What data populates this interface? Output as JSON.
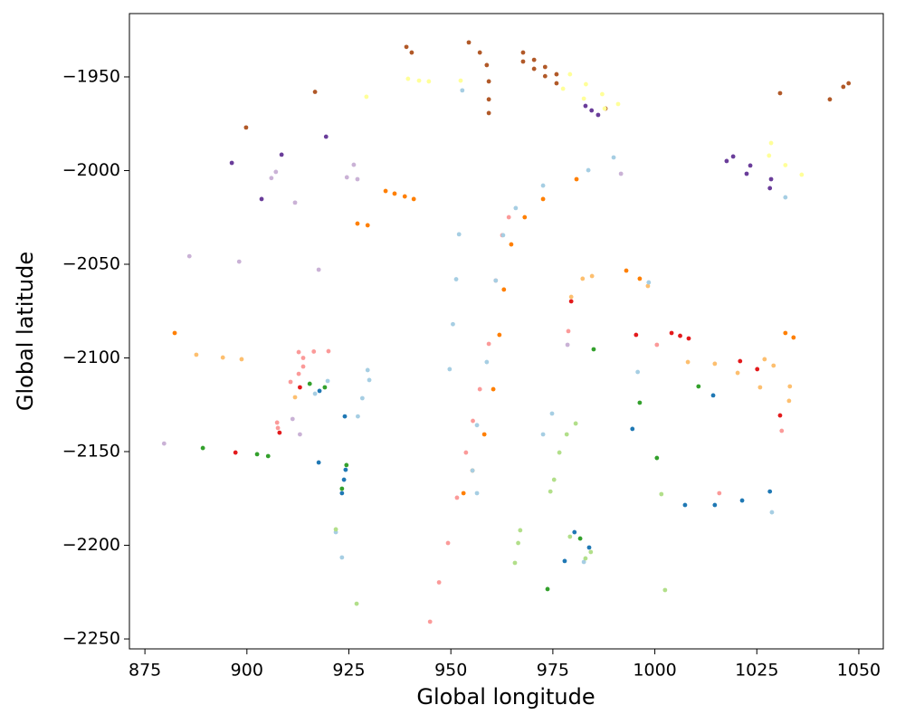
{
  "chart_data": {
    "type": "scatter",
    "x_label": "Global longitude",
    "y_label": "Global latitude",
    "xlim": [
      871.2,
      1056
    ],
    "ylim": [
      -2255.3,
      -1916.2
    ],
    "xticks": [
      875,
      900,
      925,
      950,
      975,
      1000,
      1025,
      1050
    ],
    "yticks": [
      {
        "value": -1950,
        "label": "−1950"
      },
      {
        "value": -2000,
        "label": "−2000"
      },
      {
        "value": -2050,
        "label": "−2050"
      },
      {
        "value": -2100,
        "label": "−2100"
      },
      {
        "value": -2150,
        "label": "−2150"
      },
      {
        "value": -2200,
        "label": "−2200"
      },
      {
        "value": -2250,
        "label": "−2250"
      }
    ],
    "series": [
      {
        "color": "#b15928",
        "x": [
          939.1,
          940.4,
          916.7,
          899.8,
          954.4,
          957.1,
          958.8,
          959.3,
          959.3,
          959.3,
          967.7,
          970.4,
          973.1,
          975.9,
          967.7,
          970.4,
          973.1,
          975.9,
          987.9,
          1030.7,
          1042.9,
          1046.2,
          1047.5
        ],
        "values": [
          -1934,
          -1937,
          -1958,
          -1977,
          -1931.6,
          -1937,
          -1943.7,
          -1952.4,
          -1962,
          -1969.3,
          -1937,
          -1940.9,
          -1944.7,
          -1948.6,
          -1941.8,
          -1945.7,
          -1949.6,
          -1953.4,
          -1966.9,
          -1958.7,
          -1962,
          -1955.3,
          -1953.4
        ]
      },
      {
        "color": "#ffff99",
        "x": [
          929.3,
          939.5,
          942.2,
          944.6,
          952.4,
          979.2,
          983.1,
          987.1,
          991,
          977.5,
          982.6,
          987.7,
          1028.5,
          1028,
          1032,
          1036
        ],
        "values": [
          -1960.6,
          -1951,
          -1952,
          -1952.4,
          -1952,
          -1948.6,
          -1953.9,
          -1959.2,
          -1964.5,
          -1956.3,
          -1961.6,
          -1966.9,
          -1985.3,
          -1992,
          -1997.1,
          -2002.2
        ]
      },
      {
        "color": "#6a3d9a",
        "x": [
          896.3,
          908.5,
          919.4,
          903.6,
          983,
          984.5,
          986.1,
          1019.2,
          1017.6,
          1023.4,
          1022.5,
          1028.5,
          1028.2
        ],
        "values": [
          -1995.9,
          -1991.5,
          -1981.9,
          -2015.2,
          -1965.5,
          -1967.9,
          -1970.3,
          -1992.5,
          -1994.9,
          -1997.3,
          -2001.7,
          -2004.6,
          -2009.4
        ]
      },
      {
        "color": "#cab2d6",
        "x": [
          907.1,
          906,
          926.2,
          924.5,
          927.1,
          911.8,
          885.9,
          898.1,
          917.6,
          991.7,
          879.7,
          911.2,
          913,
          978.6
        ],
        "values": [
          -2000.7,
          -2004,
          -1996.9,
          -2003.6,
          -2004.6,
          -2017.1,
          -2045.7,
          -2048.6,
          -2052.9,
          -2001.7,
          -2145.7,
          -2132.6,
          -2140.8,
          -2093
        ]
      },
      {
        "color": "#ff7f00",
        "x": [
          934,
          936.2,
          938.7,
          940.9,
          927.1,
          929.6,
          882.3,
          1032,
          1034,
          993,
          996.3,
          953.1,
          955.3,
          958.2,
          960.4,
          961.9,
          963,
          964.8,
          968.1,
          972.6,
          980.8
        ],
        "values": [
          -2010.9,
          -2012.3,
          -2013.8,
          -2015.2,
          -2028.3,
          -2029.2,
          -2086.7,
          -2086.7,
          -2089.1,
          -2053.4,
          -2057.7,
          -2172.2,
          -2160.1,
          -2140.8,
          -2116.7,
          -2087.7,
          -2063.5,
          -2039.4,
          -2024.9,
          -2015.2,
          -2004.6
        ]
      },
      {
        "color": "#fdbf6f",
        "x": [
          887.6,
          894.1,
          898.7,
          911.8,
          979.5,
          982.3,
          984.6,
          998.3,
          1026.9,
          1029.1,
          1033.1,
          1008.1,
          1014.7,
          1020.3,
          1025.8,
          1032.9
        ],
        "values": [
          -2098.3,
          -2099.8,
          -2100.7,
          -2121,
          -2067.4,
          -2057.7,
          -2056.3,
          -2061.6,
          -2100.7,
          -2104.1,
          -2115.2,
          -2102.2,
          -2103.1,
          -2108,
          -2115.7,
          -2122.9
        ]
      },
      {
        "color": "#e31a1c",
        "x": [
          979.5,
          995.4,
          1004.1,
          1006.2,
          1008.3,
          1020.9,
          1025.1,
          1030.7,
          913,
          908,
          897.2
        ],
        "values": [
          -2069.8,
          -2087.7,
          -2086.7,
          -2088.2,
          -2089.6,
          -2101.7,
          -2106,
          -2130.7,
          -2115.7,
          -2139.9,
          -2150.5
        ]
      },
      {
        "color": "#fb9a99",
        "x": [
          978.8,
          1000.5,
          907.4,
          907.6,
          1015.8,
          1031.1,
          910.7,
          912.7,
          913.8,
          913.8,
          912.7,
          916.4,
          920,
          944.9,
          947.1,
          949.3,
          951.5,
          953.7,
          955.4,
          957.1,
          959.3,
          961,
          962.6,
          964.2
        ],
        "values": [
          -2085.7,
          -2093,
          -2134.5,
          -2137.4,
          -2172.2,
          -2138.9,
          -2112.8,
          -2108.5,
          -2104.6,
          -2100,
          -2096.9,
          -2096.6,
          -2096.4,
          -2240.8,
          -2219.8,
          -2198.8,
          -2174.6,
          -2150.5,
          -2133.6,
          -2116.7,
          -2092.5,
          -2058.7,
          -2034.5,
          -2024.9
        ]
      },
      {
        "color": "#a6cee3",
        "x": [
          952.8,
          1032,
          916.7,
          919.8,
          998.5,
          995.8,
          974.8,
          972.6,
          1028.7,
          921.8,
          923.3,
          982.6,
          927.2,
          928.3,
          930,
          929.6,
          949.7,
          950.5,
          951.3,
          952,
          956.4,
          955.3,
          956.4,
          958.8,
          961,
          962.8,
          965.9,
          972.6,
          983.7,
          989.9
        ],
        "values": [
          -1957.2,
          -2014.3,
          -2119.1,
          -2112.3,
          -2059.7,
          -2107.5,
          -2129.7,
          -2140.8,
          -2182.4,
          -2193,
          -2206.5,
          -2208.9,
          -2131.2,
          -2121.5,
          -2111.8,
          -2106.5,
          -2106,
          -2082,
          -2058,
          -2034,
          -2172.2,
          -2160.1,
          -2135.9,
          -2102.2,
          -2058.7,
          -2034.5,
          -2020,
          -2008,
          -1999.8,
          -1993
        ]
      },
      {
        "color": "#1f78b4",
        "x": [
          924,
          917.8,
          917.6,
          924.2,
          923.8,
          923.3,
          994.5,
          1014.3,
          980.3,
          977.9,
          983.9,
          1007.4,
          1014.7,
          1021.4,
          1028.2
        ],
        "values": [
          -2131.2,
          -2117.6,
          -2155.8,
          -2159.7,
          -2165,
          -2172.2,
          -2137.9,
          -2120,
          -2193,
          -2208.4,
          -2201.2,
          -2178.5,
          -2178.5,
          -2176.1,
          -2171.3
        ]
      },
      {
        "color": "#b2df8a",
        "x": [
          921.8,
          967,
          966.5,
          965.7,
          979.2,
          984.3,
          983,
          1001.6,
          1002.5,
          926.9,
          974.4,
          975.3,
          976.6,
          978.4,
          980.6
        ],
        "values": [
          -2191.5,
          -2192,
          -2198.8,
          -2209.4,
          -2195.4,
          -2203.6,
          -2207,
          -2172.7,
          -2223.9,
          -2231.2,
          -2171.3,
          -2165,
          -2150.5,
          -2140.8,
          -2135
        ]
      },
      {
        "color": "#33a02c",
        "x": [
          889.2,
          902.5,
          905.2,
          915.4,
          919.1,
          924.4,
          923.3,
          985,
          996.3,
          1000.5,
          1010.7,
          973.7,
          981.7
        ],
        "values": [
          -2148.1,
          -2151.4,
          -2152.4,
          -2113.8,
          -2115.7,
          -2157.2,
          -2169.8,
          -2095.4,
          -2123.9,
          -2153.4,
          -2115.2,
          -2223.4,
          -2196.4
        ]
      }
    ]
  }
}
